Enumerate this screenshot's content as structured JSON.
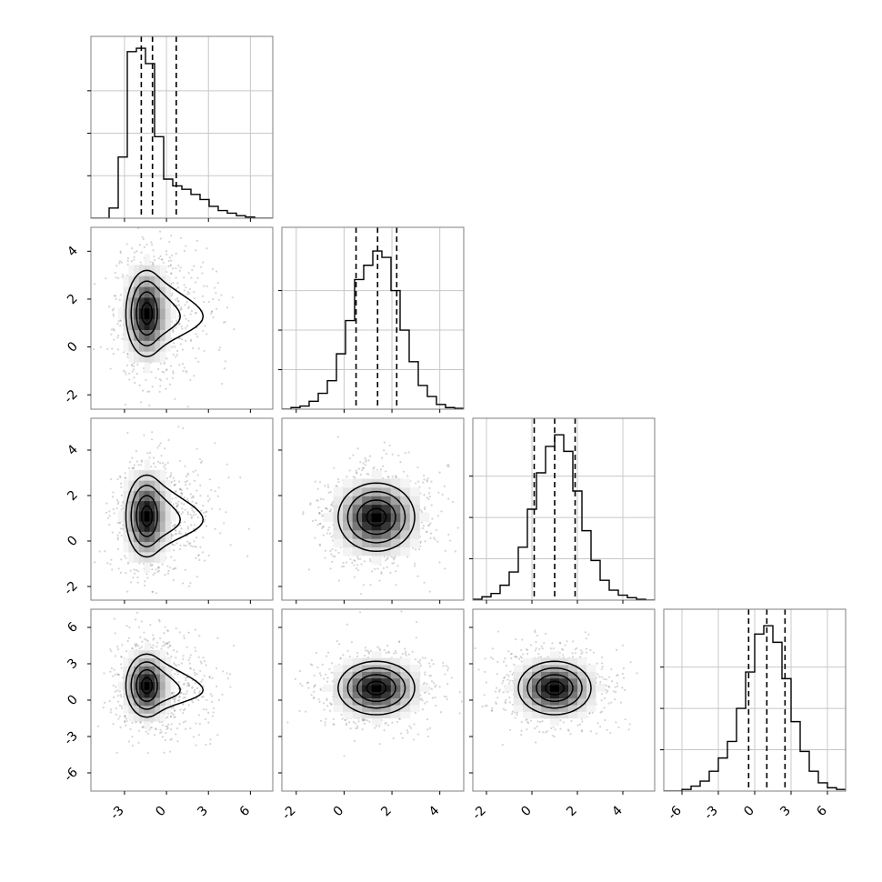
{
  "chart_data": {
    "type": "corner",
    "title": "",
    "n_params": 4,
    "params": [
      {
        "label": "",
        "range": [
          -5.4,
          7.6
        ],
        "ticks": [
          "-3",
          "0",
          "3",
          "6"
        ],
        "tick_values": [
          -3,
          0,
          3,
          6
        ],
        "quantiles": [
          -1.8,
          -1.0,
          0.7
        ],
        "histogram": {
          "edges": [
            -5.4,
            -4.75,
            -4.1,
            -3.45,
            -2.8,
            -2.15,
            -1.5,
            -0.85,
            -0.2,
            0.45,
            1.1,
            1.75,
            2.4,
            3.05,
            3.7,
            4.35,
            5.0,
            5.65,
            6.3,
            6.95,
            7.6
          ],
          "counts": [
            0,
            0,
            0.06,
            0.36,
            0.98,
            1.0,
            0.91,
            0.48,
            0.23,
            0.19,
            0.17,
            0.14,
            0.11,
            0.07,
            0.045,
            0.03,
            0.015,
            0.007,
            0,
            0
          ]
        },
        "hist_ylim": [
          0,
          1.07
        ]
      },
      {
        "label": "",
        "range": [
          -2.6,
          5.0
        ],
        "ticks": [
          "-2",
          "0",
          "2",
          "4"
        ],
        "tick_values": [
          -2,
          0,
          2,
          4
        ],
        "quantiles": [
          0.5,
          1.4,
          2.2
        ],
        "histogram": {
          "edges": [
            -2.6,
            -2.22,
            -1.84,
            -1.46,
            -1.08,
            -0.7,
            -0.32,
            0.06,
            0.44,
            0.82,
            1.2,
            1.58,
            1.96,
            2.34,
            2.72,
            3.1,
            3.48,
            3.86,
            4.24,
            4.62,
            5.0
          ],
          "counts": [
            0,
            0.01,
            0.02,
            0.05,
            0.1,
            0.18,
            0.35,
            0.56,
            0.82,
            0.91,
            1.0,
            0.96,
            0.75,
            0.5,
            0.3,
            0.15,
            0.08,
            0.03,
            0.01,
            0.005
          ]
        },
        "hist_ylim": [
          0,
          1.15
        ]
      },
      {
        "label": "",
        "range": [
          -2.6,
          5.4
        ],
        "ticks": [
          "-2",
          "0",
          "2",
          "4"
        ],
        "tick_values": [
          -2,
          0,
          2,
          4
        ],
        "quantiles": [
          0.1,
          1.0,
          1.9
        ],
        "histogram": {
          "edges": [
            -2.6,
            -2.2,
            -1.8,
            -1.4,
            -1.0,
            -0.6,
            -0.2,
            0.2,
            0.6,
            1.0,
            1.4,
            1.8,
            2.2,
            2.6,
            3.0,
            3.4,
            3.8,
            4.2,
            4.6,
            5.0,
            5.4
          ],
          "counts": [
            0.005,
            0.02,
            0.04,
            0.09,
            0.17,
            0.32,
            0.55,
            0.77,
            0.93,
            1.0,
            0.9,
            0.66,
            0.42,
            0.24,
            0.12,
            0.06,
            0.03,
            0.015,
            0.005,
            0
          ]
        },
        "hist_ylim": [
          0,
          1.1
        ]
      },
      {
        "label": "",
        "range": [
          -7.5,
          7.5
        ],
        "ticks": [
          "-6",
          "-3",
          "0",
          "3",
          "6"
        ],
        "tick_values": [
          -6,
          -3,
          0,
          3,
          6
        ],
        "quantiles": [
          -0.5,
          1.0,
          2.5
        ],
        "histogram": {
          "edges": [
            -7.5,
            -6.75,
            -6.0,
            -5.25,
            -4.5,
            -3.75,
            -3.0,
            -2.25,
            -1.5,
            -0.75,
            0.0,
            0.75,
            1.5,
            2.25,
            3.0,
            3.75,
            4.5,
            5.25,
            6.0,
            6.75,
            7.5
          ],
          "counts": [
            0,
            0.0,
            0.01,
            0.03,
            0.06,
            0.12,
            0.2,
            0.3,
            0.5,
            0.72,
            0.95,
            1.0,
            0.9,
            0.68,
            0.42,
            0.24,
            0.12,
            0.05,
            0.02,
            0.01
          ]
        },
        "hist_ylim": [
          0,
          1.1
        ]
      }
    ],
    "joint": [
      {
        "row": 1,
        "col": 0,
        "mean": [
          -1.4,
          1.4
        ],
        "sd": [
          0.75,
          0.9
        ],
        "tail": {
          "dx": 4.2,
          "dy": -0.3
        }
      },
      {
        "row": 2,
        "col": 0,
        "mean": [
          -1.4,
          1.1
        ],
        "sd": [
          0.75,
          0.9
        ],
        "tail": {
          "dx": 4.2,
          "dy": -0.4
        }
      },
      {
        "row": 3,
        "col": 0,
        "mean": [
          -1.4,
          1.2
        ],
        "sd": [
          0.75,
          1.3
        ],
        "tail": {
          "dx": 4.2,
          "dy": -0.9
        }
      },
      {
        "row": 2,
        "col": 1,
        "mean": [
          1.35,
          1.05
        ],
        "sd": [
          0.8,
          0.75
        ],
        "tail": null
      },
      {
        "row": 3,
        "col": 1,
        "mean": [
          1.35,
          1.0
        ],
        "sd": [
          0.8,
          1.1
        ],
        "tail": null
      },
      {
        "row": 3,
        "col": 2,
        "mean": [
          1.0,
          1.0
        ],
        "sd": [
          0.8,
          1.1
        ],
        "tail": null
      }
    ],
    "contour_levels_sigma": [
      0.5,
      1.0,
      1.5,
      2.0
    ],
    "grid": true,
    "colors": {
      "line": "#000000",
      "grid": "#c8c8c8",
      "frame": "#7f7f7f",
      "points": "#888888"
    }
  }
}
